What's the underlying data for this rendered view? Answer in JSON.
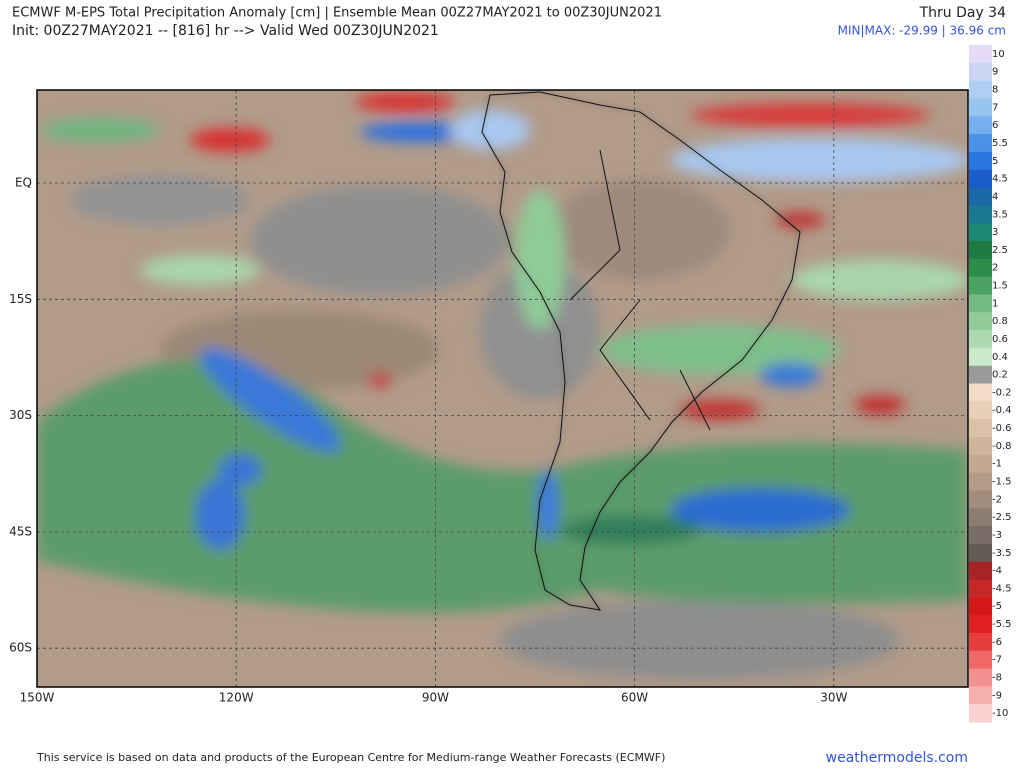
{
  "header": {
    "title": "ECMWF M-EPS Total Precipitation Anomaly [cm] | Ensemble Mean 00Z27MAY2021 to 00Z30JUN2021",
    "subtitle": "Init: 00Z27MAY2021 -- [816] hr --> Valid Wed 00Z30JUN2021",
    "period": "Thru Day 34",
    "minmax": "MIN|MAX: -29.99 | 36.96 cm"
  },
  "map": {
    "lat_labels": [
      "EQ",
      "15S",
      "30S",
      "45S",
      "60S"
    ],
    "lon_labels": [
      "150W",
      "120W",
      "90W",
      "60W",
      "30W"
    ]
  },
  "colorbar": {
    "labels": [
      "10",
      "9",
      "8",
      "7",
      "6",
      "5.5",
      "5",
      "4.5",
      "4",
      "3.5",
      "3",
      "2.5",
      "2",
      "1.5",
      "1",
      "0.8",
      "0.6",
      "0.4",
      "0.2",
      "-0.2",
      "-0.4",
      "-0.6",
      "-0.8",
      "-1",
      "-1.5",
      "-2",
      "-2.5",
      "-3",
      "-3.5",
      "-4",
      "-4.5",
      "-5",
      "-5.5",
      "-6",
      "-7",
      "-8",
      "-9",
      "-10"
    ],
    "colors": [
      "#e4dcf4",
      "#ccd4f4",
      "#b0cef2",
      "#98c4f0",
      "#74b0ee",
      "#4a92e8",
      "#2a76e0",
      "#1c5cc8",
      "#1a68a8",
      "#1a7890",
      "#1a8872",
      "#1f7a42",
      "#2c8c4a",
      "#4ca262",
      "#72ba82",
      "#92ca9a",
      "#acd9b2",
      "#cae9c8",
      "#9a9a9a",
      "#f1dcc8",
      "#e8cfb8",
      "#dcc1a9",
      "#d0b59d",
      "#c4a991",
      "#b49c88",
      "#a18d7d",
      "#8d7d71",
      "#796d65",
      "#655b55",
      "#a82424",
      "#c42828",
      "#d41818",
      "#e02020",
      "#e63e3e",
      "#ee6868",
      "#f39090",
      "#f7b0b0",
      "#fbd0d0"
    ]
  },
  "footer": {
    "credit": "This service is based on data and products of the European Centre for Medium-range Weather Forecasts (ECMWF)",
    "site": "weathermodels.com"
  }
}
